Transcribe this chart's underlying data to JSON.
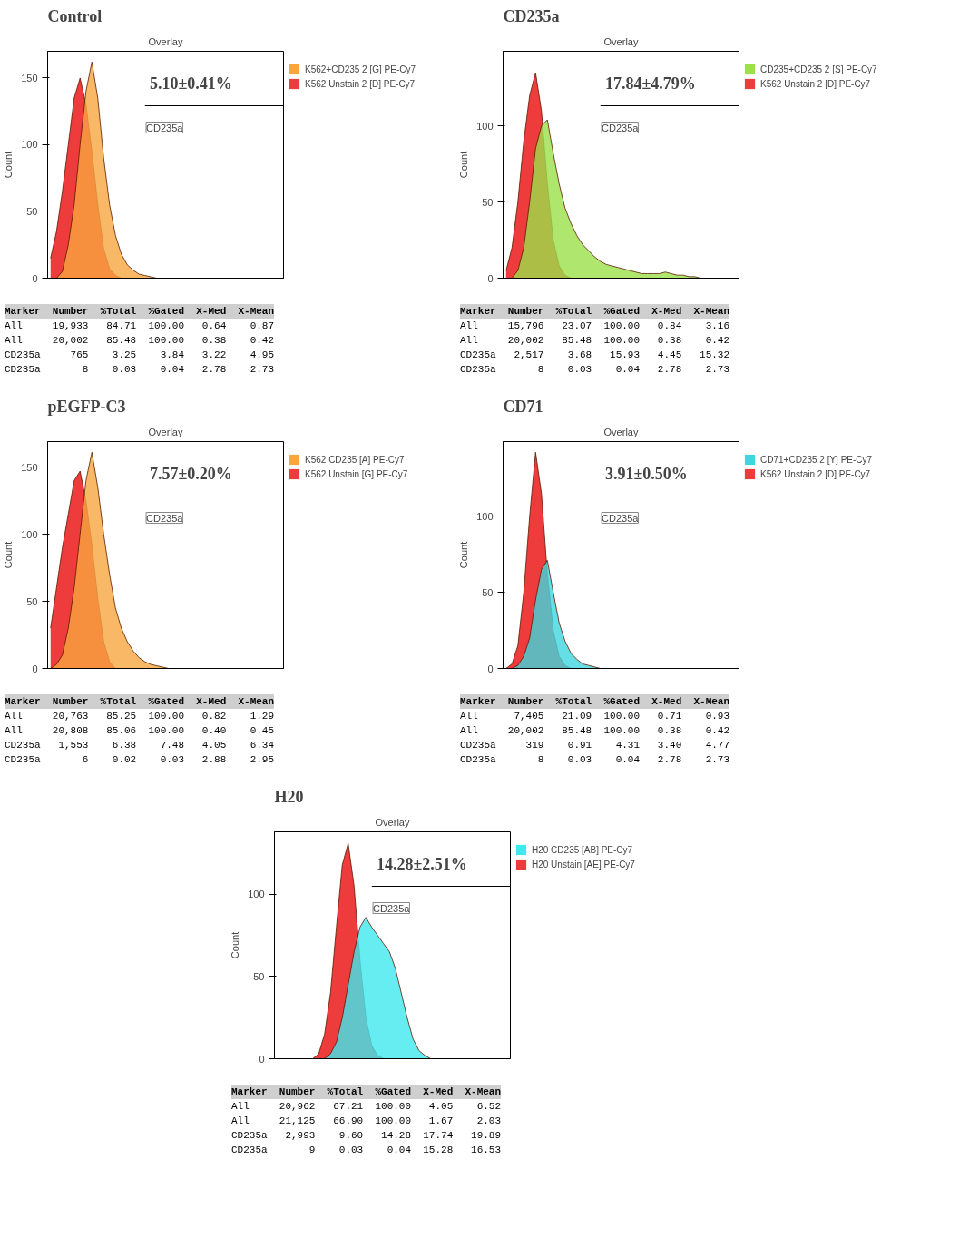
{
  "chart_data": [
    {
      "type": "area",
      "title": "Control",
      "subtitle": "Overlay",
      "ylabel": "Count",
      "ylim": [
        0,
        170
      ],
      "yticks": [
        0,
        50,
        100,
        150
      ],
      "tick_labels": "y",
      "legend": "right",
      "grid": false,
      "categories": [
        null,
        null,
        null,
        null,
        null,
        null,
        null,
        null,
        null,
        null,
        null,
        null,
        null,
        null,
        null,
        null,
        null,
        null,
        null,
        null,
        null,
        null,
        null,
        null,
        null,
        null,
        null,
        null,
        null,
        null,
        null,
        null,
        null,
        null,
        null,
        null,
        null,
        null,
        null,
        null
      ],
      "series": [
        {
          "name": "K562 Unstain 2 [D] PE-Cy7",
          "color": "#ee3b3b",
          "values": [
            15,
            35,
            65,
            100,
            135,
            150,
            130,
            95,
            55,
            22,
            7,
            2,
            0,
            0,
            0,
            0,
            0,
            0,
            0,
            0,
            0,
            0,
            0,
            0,
            0,
            0,
            0,
            0,
            0,
            0,
            0,
            0,
            0,
            0,
            0,
            0,
            0,
            0,
            0,
            0
          ]
        },
        {
          "name": "K562+CD235 2 [G] PE-Cy7",
          "color": "#f7a640",
          "values": [
            0,
            0,
            5,
            25,
            55,
            100,
            140,
            162,
            135,
            90,
            55,
            32,
            18,
            10,
            6,
            3,
            2,
            1,
            0,
            0,
            0,
            0,
            0,
            0,
            0,
            0,
            0,
            0,
            0,
            0,
            0,
            0,
            0,
            0,
            0,
            0,
            0,
            0,
            0,
            0
          ]
        }
      ],
      "annotations": [
        "5.10±0.41%",
        "CD235a",
        "Marker  Number  %Total  %Gated  X-Med  X-Mean",
        "All     19,933   84.71  100.00   0.64    0.87",
        "All     20,002   85.48  100.00   0.38    0.42",
        "CD235a     765    3.25    3.84   3.22    4.95",
        "CD235a       8    0.03    0.04   2.78    2.73"
      ]
    },
    {
      "type": "area",
      "title": "CD235a",
      "subtitle": "Overlay",
      "ylabel": "Count",
      "ylim": [
        0,
        149
      ],
      "yticks": [
        0,
        50,
        100
      ],
      "tick_labels": "y",
      "legend": "right",
      "grid": false,
      "categories": [
        null,
        null,
        null,
        null,
        null,
        null,
        null,
        null,
        null,
        null,
        null,
        null,
        null,
        null,
        null,
        null,
        null,
        null,
        null,
        null,
        null,
        null,
        null,
        null,
        null,
        null,
        null,
        null,
        null,
        null,
        null,
        null,
        null,
        null,
        null,
        null,
        null,
        null,
        null,
        null
      ],
      "series": [
        {
          "name": "K562 Unstain 2 [D] PE-Cy7",
          "color": "#ee3b3b",
          "values": [
            5,
            20,
            50,
            90,
            120,
            135,
            110,
            62,
            25,
            8,
            2,
            0,
            0,
            0,
            0,
            0,
            0,
            0,
            0,
            0,
            0,
            0,
            0,
            0,
            0,
            0,
            0,
            0,
            0,
            0,
            0,
            0,
            0,
            0,
            0,
            0,
            0,
            0,
            0,
            0
          ]
        },
        {
          "name": "CD235+CD235 2 [S] PE-Cy7",
          "color": "#9be04a",
          "values": [
            0,
            0,
            5,
            20,
            50,
            85,
            100,
            104,
            82,
            62,
            46,
            36,
            28,
            22,
            18,
            14,
            11,
            9,
            8,
            7,
            6,
            5,
            4,
            3,
            3,
            3,
            3,
            4,
            3,
            2,
            2,
            1,
            1,
            0,
            0,
            0,
            0,
            0,
            0,
            0
          ]
        }
      ],
      "annotations": [
        "17.84±4.79%",
        "CD235a",
        "Marker  Number  %Total  %Gated  X-Med  X-Mean",
        "All     15,796   23.07  100.00   0.84    3.16",
        "All     20,002   85.48  100.00   0.38    0.42",
        "CD235a   2,517    3.68   15.93   4.45   15.32",
        "CD235a       8    0.03    0.04   2.78    2.73"
      ]
    },
    {
      "type": "area",
      "title": "pEGFP-C3",
      "subtitle": "Overlay",
      "ylabel": "Count",
      "ylim": [
        0,
        169
      ],
      "yticks": [
        0,
        50,
        100,
        150
      ],
      "tick_labels": "y",
      "legend": "right",
      "grid": false,
      "categories": [
        null,
        null,
        null,
        null,
        null,
        null,
        null,
        null,
        null,
        null,
        null,
        null,
        null,
        null,
        null,
        null,
        null,
        null,
        null,
        null,
        null,
        null,
        null,
        null,
        null,
        null,
        null,
        null,
        null,
        null,
        null,
        null,
        null,
        null,
        null,
        null,
        null,
        null,
        null,
        null
      ],
      "series": [
        {
          "name": "K562 Unstain [G] PE-Cy7",
          "color": "#ee3b3b",
          "values": [
            30,
            60,
            90,
            115,
            140,
            147,
            125,
            92,
            52,
            20,
            5,
            0,
            0,
            0,
            0,
            0,
            0,
            0,
            0,
            0,
            0,
            0,
            0,
            0,
            0,
            0,
            0,
            0,
            0,
            0,
            0,
            0,
            0,
            0,
            0,
            0,
            0,
            0,
            0,
            0
          ]
        },
        {
          "name": "K562 CD235 [A] PE-Cy7",
          "color": "#f7a640",
          "values": [
            0,
            3,
            10,
            30,
            60,
            100,
            140,
            161,
            135,
            100,
            70,
            45,
            30,
            20,
            13,
            8,
            5,
            3,
            2,
            1,
            0,
            0,
            0,
            0,
            0,
            0,
            0,
            0,
            0,
            0,
            0,
            0,
            0,
            0,
            0,
            0,
            0,
            0,
            0,
            0
          ]
        }
      ],
      "annotations": [
        "7.57±0.20%",
        "CD235a",
        "Marker  Number  %Total  %Gated  X-Med  X-Mean",
        "All     20,763   85.25  100.00   0.82    1.29",
        "All     20,808   85.06  100.00   0.40    0.45",
        "CD235a   1,553    6.38    7.48   4.05    6.34",
        "CD235a       6    0.02    0.03   2.88    2.95"
      ]
    },
    {
      "type": "area",
      "title": "CD71",
      "subtitle": "Overlay",
      "ylabel": "Count",
      "ylim": [
        0,
        149
      ],
      "yticks": [
        0,
        50,
        100
      ],
      "tick_labels": "y",
      "legend": "right",
      "grid": false,
      "categories": [
        null,
        null,
        null,
        null,
        null,
        null,
        null,
        null,
        null,
        null,
        null,
        null,
        null,
        null,
        null,
        null,
        null,
        null,
        null,
        null,
        null,
        null,
        null,
        null,
        null,
        null,
        null,
        null,
        null,
        null,
        null,
        null,
        null,
        null,
        null,
        null,
        null,
        null,
        null,
        null
      ],
      "series": [
        {
          "name": "K562 Unstain 2 [D] PE-Cy7",
          "color": "#ee3b3b",
          "values": [
            0,
            3,
            15,
            50,
            100,
            142,
            115,
            62,
            25,
            8,
            2,
            0,
            0,
            0,
            0,
            0,
            0,
            0,
            0,
            0,
            0,
            0,
            0,
            0,
            0,
            0,
            0,
            0,
            0,
            0,
            0,
            0,
            0,
            0,
            0,
            0,
            0,
            0,
            0,
            0
          ]
        },
        {
          "name": "CD71+CD235 2 [Y] PE-Cy7",
          "color": "#3fd7df",
          "values": [
            0,
            0,
            2,
            8,
            20,
            45,
            65,
            71,
            50,
            30,
            18,
            10,
            6,
            3,
            2,
            1,
            0,
            0,
            0,
            0,
            0,
            0,
            0,
            0,
            0,
            0,
            0,
            0,
            0,
            0,
            0,
            0,
            0,
            0,
            0,
            0,
            0,
            0,
            0,
            0
          ]
        }
      ],
      "annotations": [
        "3.91±0.50%",
        "CD235a",
        "Marker  Number  %Total  %Gated  X-Med  X-Mean",
        "All      7,405   21.09  100.00   0.71    0.93",
        "All     20,002   85.48  100.00   0.38    0.42",
        "CD235a     319    0.91    4.31   3.40    4.77",
        "CD235a       8    0.03    0.04   2.78    2.73"
      ]
    },
    {
      "type": "area",
      "title": "H20",
      "subtitle": "Overlay",
      "ylabel": "Count",
      "ylim": [
        0,
        138
      ],
      "yticks": [
        0,
        50,
        100
      ],
      "tick_labels": "y",
      "legend": "right",
      "grid": false,
      "categories": [
        null,
        null,
        null,
        null,
        null,
        null,
        null,
        null,
        null,
        null,
        null,
        null,
        null,
        null,
        null,
        null,
        null,
        null,
        null,
        null,
        null,
        null,
        null,
        null,
        null,
        null,
        null,
        null,
        null,
        null,
        null,
        null,
        null,
        null,
        null,
        null,
        null,
        null,
        null,
        null
      ],
      "series": [
        {
          "name": "H20 Unstain [AE] PE-Cy7",
          "color": "#ee3b3b",
          "values": [
            0,
            0,
            0,
            0,
            0,
            0,
            0,
            3,
            15,
            40,
            80,
            118,
            131,
            105,
            60,
            25,
            8,
            2,
            0,
            0,
            0,
            0,
            0,
            0,
            0,
            0,
            0,
            0,
            0,
            0,
            0,
            0,
            0,
            0,
            0,
            0,
            0,
            0,
            0,
            0
          ]
        },
        {
          "name": "H20 CD235 [AB] PE-Cy7",
          "color": "#3fe8ef",
          "values": [
            0,
            0,
            0,
            0,
            0,
            0,
            0,
            0,
            0,
            3,
            10,
            25,
            45,
            65,
            80,
            86,
            80,
            75,
            70,
            65,
            55,
            40,
            25,
            12,
            5,
            2,
            0,
            0,
            0,
            0,
            0,
            0,
            0,
            0,
            0,
            0,
            0,
            0,
            0,
            0
          ]
        }
      ],
      "annotations": [
        "14.28±2.51%",
        "CD235a",
        "Marker  Number  %Total  %Gated  X-Med  X-Mean",
        "All     20,962   67.21  100.00   4.05    6.52",
        "All     21,125   66.90  100.00   1.67    2.03",
        "CD235a   2,993    9.60   14.28  17.74   19.89",
        "CD235a       9    0.03    0.04  15.28   16.53"
      ]
    }
  ]
}
